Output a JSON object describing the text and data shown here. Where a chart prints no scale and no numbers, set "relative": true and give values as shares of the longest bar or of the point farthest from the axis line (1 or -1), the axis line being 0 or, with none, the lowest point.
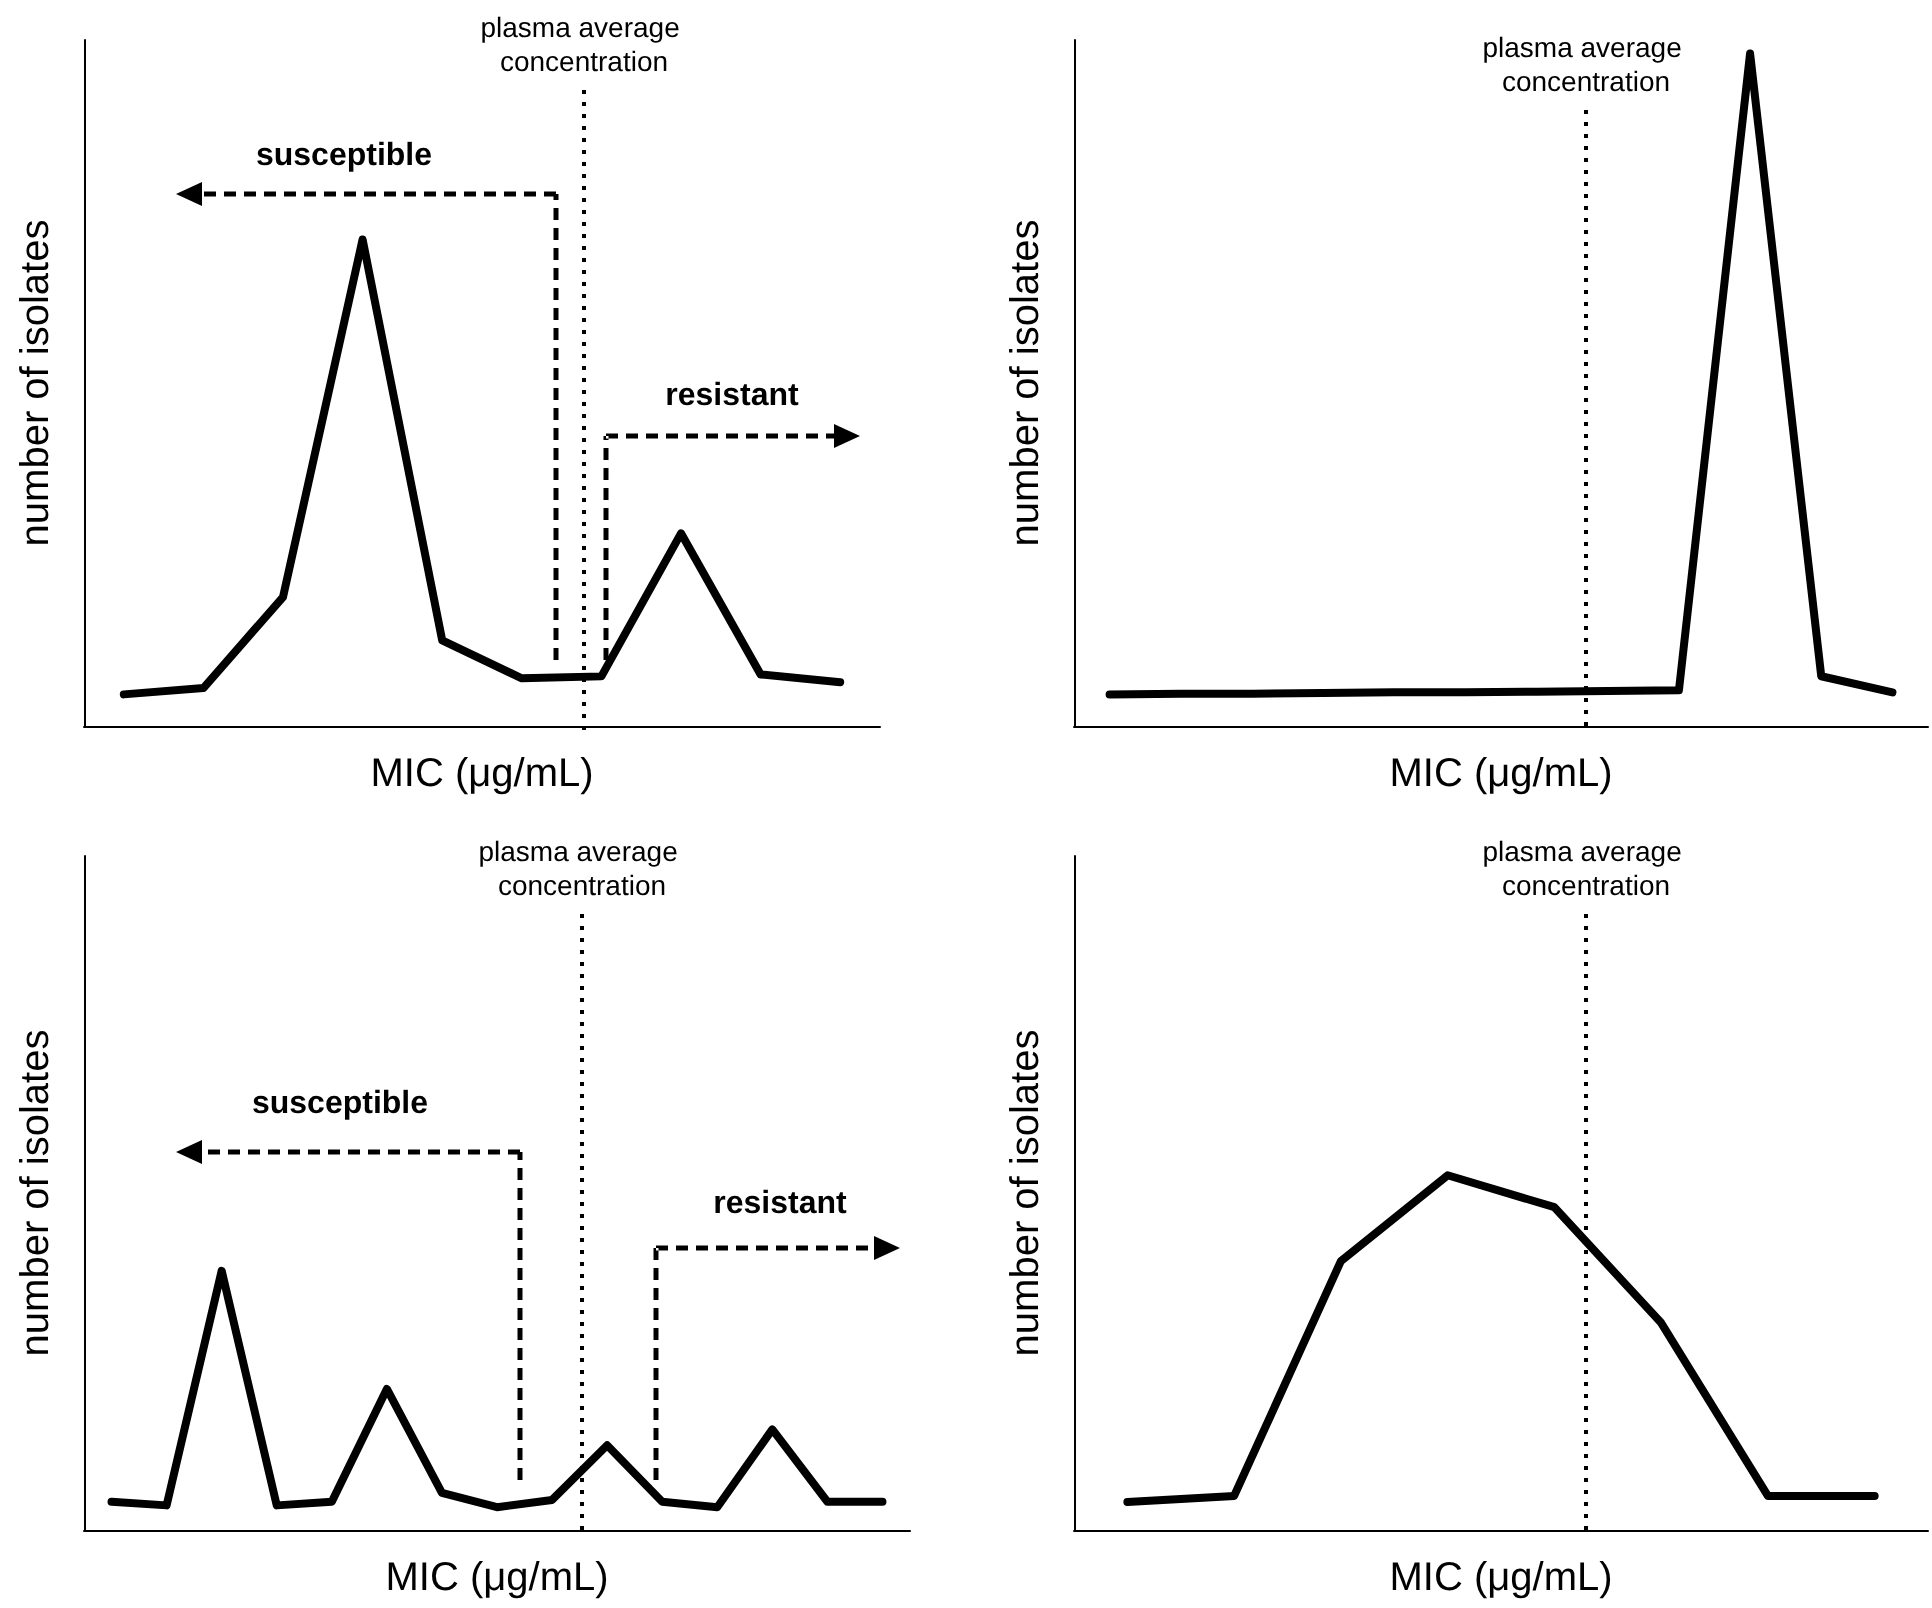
{
  "chart_data": [
    {
      "type": "line",
      "relative": true,
      "xlabel": "MIC (μg/mL)",
      "ylabel": "number of isolates",
      "categories": [
        null,
        null,
        null,
        null,
        null,
        null,
        null,
        null,
        null,
        null
      ],
      "series": [
        {
          "color": "#000000",
          "values": [
            0.065,
            0.078,
            0.265,
            1,
            0.176,
            0.098,
            0.102,
            0.396,
            0.106,
            0.09
          ]
        }
      ],
      "ref_lines": [
        {
          "axis": "x",
          "label": "plasma average concentration",
          "line_style": "dotted"
        }
      ],
      "annotations": [
        "susceptible",
        "resistant"
      ]
    },
    {
      "type": "line",
      "relative": true,
      "xlabel": "MIC (μg/mL)",
      "ylabel": "number of isolates",
      "categories": [
        null,
        null,
        null,
        null,
        null,
        null,
        null,
        null,
        null,
        null,
        null,
        null
      ],
      "series": [
        {
          "color": "#000000",
          "values": [
            0.047,
            0.048,
            0.048,
            0.049,
            0.05,
            0.05,
            0.051,
            0.052,
            0.053,
            1,
            0.074,
            0.05
          ]
        }
      ],
      "ref_lines": [
        {
          "axis": "x",
          "label": "plasma average concentration",
          "line_style": "dotted"
        }
      ]
    },
    {
      "type": "line",
      "relative": true,
      "xlabel": "MIC (μg/mL)",
      "ylabel": "number of isolates",
      "categories": [
        null,
        null,
        null,
        null,
        null,
        null,
        null,
        null,
        null,
        null,
        null,
        null,
        null,
        null,
        null
      ],
      "series": [
        {
          "color": "#000000",
          "values": [
            0.109,
            0.095,
            1,
            0.095,
            0.109,
            0.544,
            0.143,
            0.088,
            0.116,
            0.327,
            0.109,
            0.088,
            0.388,
            0.109,
            0.109
          ]
        }
      ],
      "ref_lines": [
        {
          "axis": "x",
          "label": "plasma average concentration",
          "line_style": "dotted"
        }
      ],
      "annotations": [
        "susceptible",
        "resistant"
      ]
    },
    {
      "type": "line",
      "relative": true,
      "xlabel": "MIC (μg/mL)",
      "ylabel": "number of isolates",
      "categories": [
        null,
        null,
        null,
        null,
        null,
        null,
        null,
        null
      ],
      "series": [
        {
          "color": "#000000",
          "values": [
            0.079,
            0.096,
            0.758,
            1,
            0.91,
            0.584,
            0.096,
            0.096
          ]
        }
      ],
      "ref_lines": [
        {
          "axis": "x",
          "label": "plasma average concentration",
          "line_style": "dotted"
        }
      ]
    }
  ]
}
